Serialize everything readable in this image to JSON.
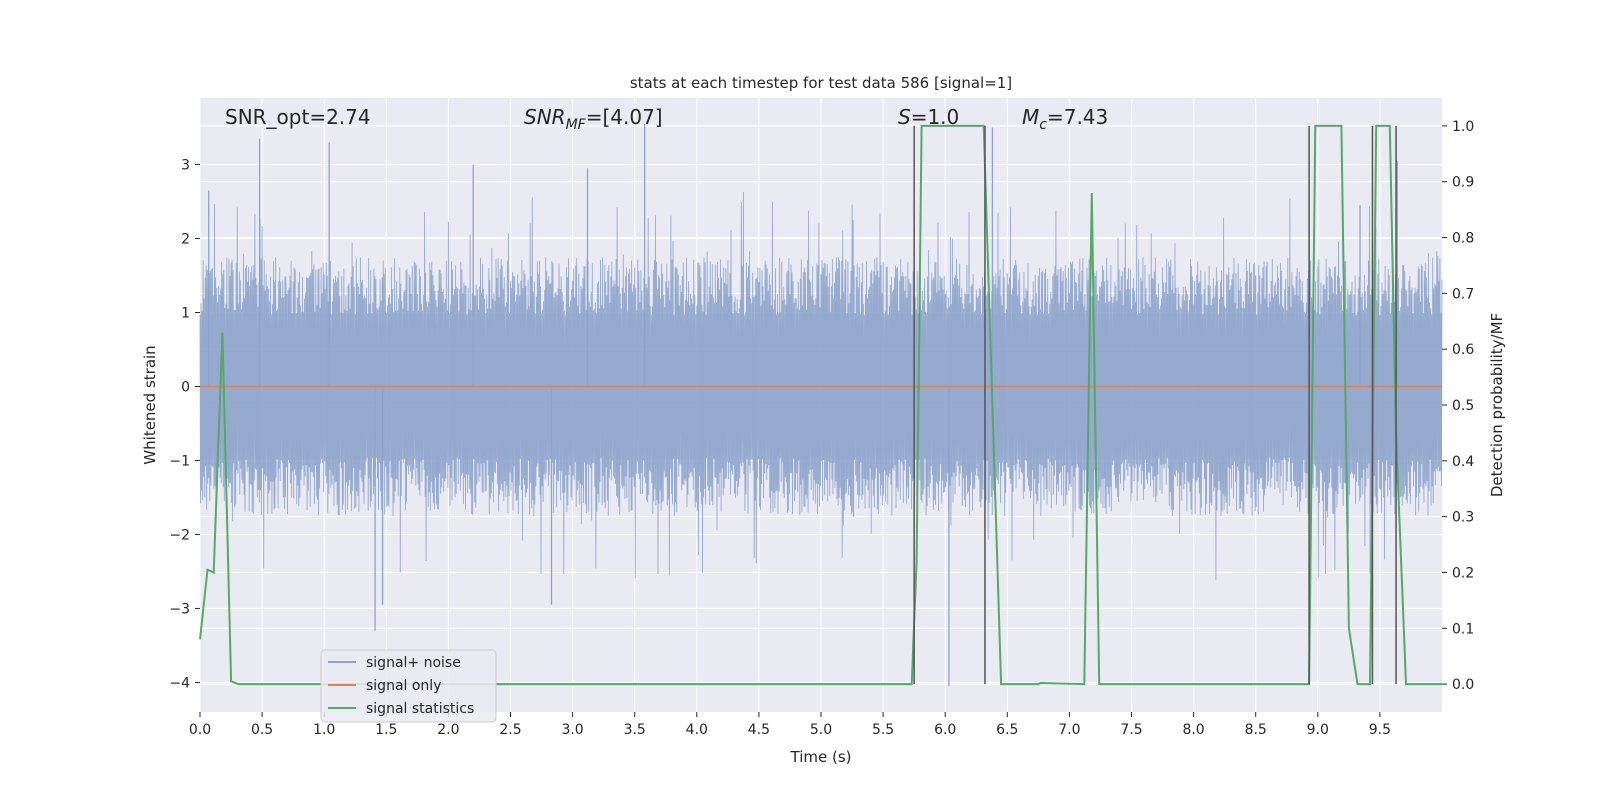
{
  "chart_data": {
    "type": "line",
    "title": "stats at each timestep for test data 586 [signal=1]",
    "xlabel": "Time (s)",
    "ylabel": "Whitened strain",
    "ylabel_right": "Detection probability/MF",
    "xlim": [
      0,
      10
    ],
    "ylim": [
      -4.4,
      3.9
    ],
    "ylim_right": [
      -0.05,
      1.05
    ],
    "x_ticks": [
      0.0,
      0.5,
      1.0,
      1.5,
      2.0,
      2.5,
      3.0,
      3.5,
      4.0,
      4.5,
      5.0,
      5.5,
      6.0,
      6.5,
      7.0,
      7.5,
      8.0,
      8.5,
      9.0,
      9.5
    ],
    "x_tick_labels": [
      "0.0",
      "0.5",
      "1.0",
      "1.5",
      "2.0",
      "2.5",
      "3.0",
      "3.5",
      "4.0",
      "4.5",
      "5.0",
      "5.5",
      "6.0",
      "6.5",
      "7.0",
      "7.5",
      "8.0",
      "8.5",
      "9.0",
      "9.5"
    ],
    "y_ticks": [
      3,
      2,
      1,
      0,
      -1,
      -2,
      -3,
      -4
    ],
    "y_tick_labels": [
      "3",
      "2",
      "1",
      "0",
      "−1",
      "−2",
      "−3",
      "−4"
    ],
    "y_right_ticks": [
      1.0,
      0.9,
      0.8,
      0.7,
      0.6,
      0.5,
      0.4,
      0.3,
      0.2,
      0.1,
      0.0
    ],
    "y_right_tick_labels": [
      "1.0",
      "0.9",
      "0.8",
      "0.7",
      "0.6",
      "0.5",
      "0.4",
      "0.3",
      "0.2",
      "0.1",
      "0.0"
    ],
    "grid": true,
    "legend_position": "lower-left",
    "annotations": {
      "snr_opt": "SNR_opt=2.74",
      "snr_mf_sym": "SNR",
      "snr_mf_sub": "MF",
      "snr_mf_val": "=[4.07]",
      "s_sym": "S",
      "s_val": "=1.0",
      "mc_sym": "M",
      "mc_sub": "c",
      "mc_val": "=7.43"
    },
    "series": [
      {
        "name": "signal+ noise",
        "color": "#8da3cc",
        "axis": "left",
        "kind": "noise",
        "envelope": 1.75,
        "peaks": [
          [
            0.07,
            2.65
          ],
          [
            0.48,
            3.35
          ],
          [
            1.04,
            3.3
          ],
          [
            1.41,
            -3.3
          ],
          [
            1.47,
            -2.95
          ],
          [
            2.2,
            3.0
          ],
          [
            2.83,
            -2.95
          ],
          [
            3.12,
            2.95
          ],
          [
            3.58,
            3.55
          ],
          [
            6.03,
            -4.05
          ],
          [
            6.38,
            3.5
          ],
          [
            9.34,
            2.45
          ],
          [
            9.64,
            3.05
          ]
        ]
      },
      {
        "name": "signal only",
        "color": "#dd8452",
        "axis": "left",
        "kind": "chirp",
        "start": 5.75,
        "end": 9.65,
        "max_amp": 0.3
      },
      {
        "name": "signal statistics",
        "color": "#55a868",
        "axis": "right",
        "kind": "line",
        "x": [
          0.0,
          0.06,
          0.11,
          0.18,
          0.25,
          0.31,
          5.73,
          5.77,
          5.81,
          6.31,
          6.45,
          6.75,
          6.77,
          7.12,
          7.18,
          7.24,
          8.93,
          8.98,
          9.19,
          9.25,
          9.32,
          9.42,
          9.47,
          9.58,
          9.63,
          9.71,
          10.0
        ],
        "values": [
          0.08,
          0.205,
          0.2,
          0.63,
          0.005,
          0.0,
          0.0,
          0.22,
          1.0,
          1.0,
          0.0,
          0.0,
          0.002,
          0.0,
          0.88,
          0.0,
          0.0,
          1.0,
          1.0,
          0.1,
          0.0,
          0.0,
          1.0,
          1.0,
          0.45,
          0.0,
          0.0
        ]
      }
    ],
    "vertical_markers": {
      "color": "#555555",
      "x": [
        5.75,
        6.32,
        8.93,
        9.44,
        9.63
      ]
    }
  }
}
